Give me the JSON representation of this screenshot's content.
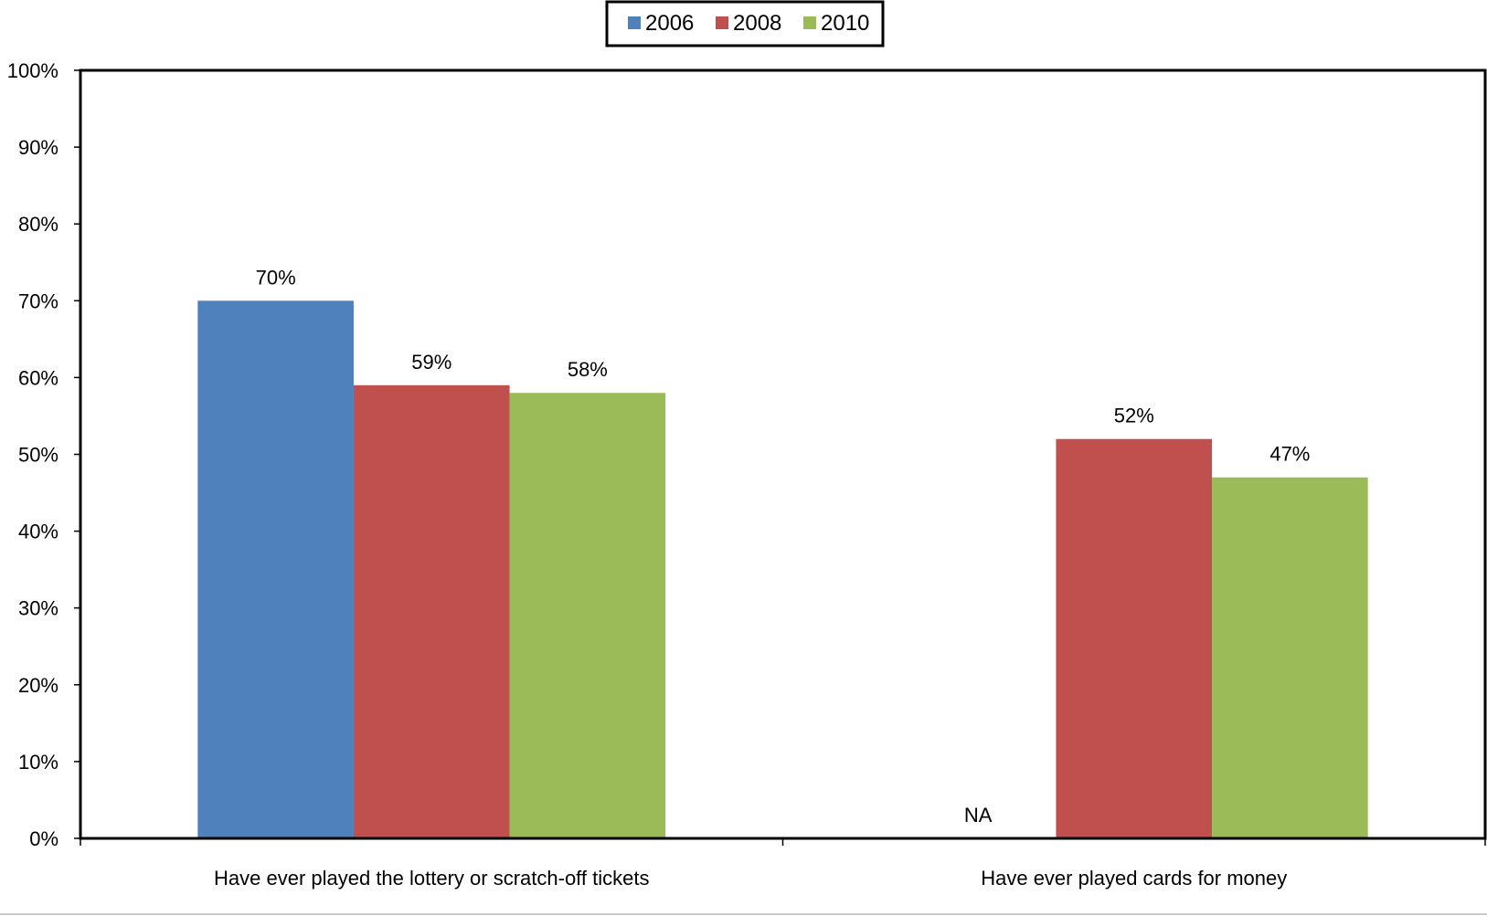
{
  "chart_data": {
    "type": "bar",
    "categories": [
      "Have ever played the lottery or scratch-off tickets",
      "Have ever played cards for money"
    ],
    "series": [
      {
        "name": "2006",
        "color": "#4F81BD",
        "values": [
          70,
          null
        ],
        "labels": [
          "70%",
          "NA"
        ]
      },
      {
        "name": "2008",
        "color": "#C0504D",
        "values": [
          59,
          52
        ],
        "labels": [
          "59%",
          "52%"
        ]
      },
      {
        "name": "2010",
        "color": "#9BBB59",
        "values": [
          58,
          47
        ],
        "labels": [
          "58%",
          "47%"
        ]
      }
    ],
    "ylim": [
      0,
      100
    ],
    "yticks": [
      0,
      10,
      20,
      30,
      40,
      50,
      60,
      70,
      80,
      90,
      100
    ],
    "ytick_labels": [
      "0%",
      "10%",
      "20%",
      "30%",
      "40%",
      "50%",
      "60%",
      "70%",
      "80%",
      "90%",
      "100%"
    ],
    "legend_position": "top-center",
    "grid": false
  }
}
